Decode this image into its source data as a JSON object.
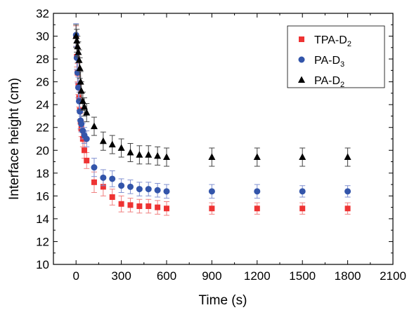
{
  "chart_data": {
    "type": "scatter",
    "xlabel": "Time (s)",
    "ylabel": "Interface height (cm)",
    "xlim": [
      -150,
      2100
    ],
    "ylim": [
      10,
      32
    ],
    "xticks": [
      0,
      300,
      600,
      900,
      1200,
      1500,
      1800,
      2100
    ],
    "yticks": [
      10,
      12,
      14,
      16,
      18,
      20,
      22,
      24,
      26,
      28,
      30,
      32
    ],
    "grid": false,
    "legend_position": "top-right",
    "series": [
      {
        "name_main": "TPA-D",
        "name_sub": "2",
        "marker": "square",
        "color": "#ee3333",
        "points": [
          {
            "x": 0,
            "y": 30.0,
            "err": 0.9
          },
          {
            "x": 5,
            "y": 28.2,
            "err": 0.9
          },
          {
            "x": 10,
            "y": 26.8,
            "err": 0.8
          },
          {
            "x": 15,
            "y": 25.7,
            "err": 0.8
          },
          {
            "x": 20,
            "y": 24.6,
            "err": 0.8
          },
          {
            "x": 25,
            "y": 23.5,
            "err": 0.8
          },
          {
            "x": 30,
            "y": 22.5,
            "err": 0.7
          },
          {
            "x": 35,
            "y": 21.9,
            "err": 0.7
          },
          {
            "x": 45,
            "y": 21.0,
            "err": 0.7
          },
          {
            "x": 55,
            "y": 20.0,
            "err": 0.7
          },
          {
            "x": 70,
            "y": 19.1,
            "err": 0.7
          },
          {
            "x": 120,
            "y": 17.2,
            "err": 0.9
          },
          {
            "x": 180,
            "y": 16.8,
            "err": 0.8
          },
          {
            "x": 240,
            "y": 15.9,
            "err": 0.7
          },
          {
            "x": 300,
            "y": 15.3,
            "err": 0.7
          },
          {
            "x": 360,
            "y": 15.2,
            "err": 0.6
          },
          {
            "x": 420,
            "y": 15.1,
            "err": 0.6
          },
          {
            "x": 480,
            "y": 15.1,
            "err": 0.6
          },
          {
            "x": 540,
            "y": 15.0,
            "err": 0.6
          },
          {
            "x": 600,
            "y": 14.9,
            "err": 0.6
          },
          {
            "x": 900,
            "y": 14.9,
            "err": 0.5
          },
          {
            "x": 1200,
            "y": 14.9,
            "err": 0.5
          },
          {
            "x": 1500,
            "y": 14.9,
            "err": 0.5
          },
          {
            "x": 1800,
            "y": 14.9,
            "err": 0.5
          }
        ]
      },
      {
        "name_main": "PA-D",
        "name_sub": "3",
        "marker": "circle",
        "color": "#3355aa",
        "points": [
          {
            "x": 0,
            "y": 30.1,
            "err": 1.0
          },
          {
            "x": 5,
            "y": 28.1,
            "err": 1.0
          },
          {
            "x": 10,
            "y": 26.8,
            "err": 0.9
          },
          {
            "x": 15,
            "y": 25.5,
            "err": 0.9
          },
          {
            "x": 20,
            "y": 24.3,
            "err": 0.8
          },
          {
            "x": 25,
            "y": 23.4,
            "err": 0.8
          },
          {
            "x": 30,
            "y": 22.6,
            "err": 0.7
          },
          {
            "x": 35,
            "y": 22.3,
            "err": 0.7
          },
          {
            "x": 45,
            "y": 21.7,
            "err": 0.7
          },
          {
            "x": 55,
            "y": 21.3,
            "err": 0.7
          },
          {
            "x": 70,
            "y": 21.0,
            "err": 0.7
          },
          {
            "x": 120,
            "y": 18.5,
            "err": 0.8
          },
          {
            "x": 180,
            "y": 17.6,
            "err": 0.7
          },
          {
            "x": 240,
            "y": 17.5,
            "err": 0.7
          },
          {
            "x": 300,
            "y": 16.9,
            "err": 0.6
          },
          {
            "x": 360,
            "y": 16.8,
            "err": 0.6
          },
          {
            "x": 420,
            "y": 16.6,
            "err": 0.6
          },
          {
            "x": 480,
            "y": 16.6,
            "err": 0.6
          },
          {
            "x": 540,
            "y": 16.5,
            "err": 0.6
          },
          {
            "x": 600,
            "y": 16.4,
            "err": 0.6
          },
          {
            "x": 900,
            "y": 16.4,
            "err": 0.6
          },
          {
            "x": 1200,
            "y": 16.4,
            "err": 0.6
          },
          {
            "x": 1500,
            "y": 16.4,
            "err": 0.5
          },
          {
            "x": 1800,
            "y": 16.4,
            "err": 0.5
          }
        ]
      },
      {
        "name_main": "PA-D",
        "name_sub": "2",
        "marker": "triangle",
        "color": "#000000",
        "points": [
          {
            "x": 0,
            "y": 30.0,
            "err": 1.0
          },
          {
            "x": 5,
            "y": 29.6,
            "err": 1.0
          },
          {
            "x": 10,
            "y": 29.1,
            "err": 0.9
          },
          {
            "x": 15,
            "y": 28.6,
            "err": 0.9
          },
          {
            "x": 20,
            "y": 27.9,
            "err": 0.9
          },
          {
            "x": 25,
            "y": 27.2,
            "err": 0.9
          },
          {
            "x": 30,
            "y": 26.0,
            "err": 0.9
          },
          {
            "x": 35,
            "y": 25.2,
            "err": 0.8
          },
          {
            "x": 45,
            "y": 24.3,
            "err": 0.8
          },
          {
            "x": 55,
            "y": 23.8,
            "err": 0.8
          },
          {
            "x": 70,
            "y": 23.3,
            "err": 0.8
          },
          {
            "x": 120,
            "y": 22.1,
            "err": 0.8
          },
          {
            "x": 180,
            "y": 20.8,
            "err": 0.8
          },
          {
            "x": 240,
            "y": 20.5,
            "err": 0.8
          },
          {
            "x": 300,
            "y": 20.2,
            "err": 0.8
          },
          {
            "x": 360,
            "y": 19.8,
            "err": 0.8
          },
          {
            "x": 420,
            "y": 19.6,
            "err": 0.8
          },
          {
            "x": 480,
            "y": 19.6,
            "err": 0.8
          },
          {
            "x": 540,
            "y": 19.5,
            "err": 0.8
          },
          {
            "x": 600,
            "y": 19.4,
            "err": 0.8
          },
          {
            "x": 900,
            "y": 19.4,
            "err": 0.8
          },
          {
            "x": 1200,
            "y": 19.4,
            "err": 0.8
          },
          {
            "x": 1500,
            "y": 19.4,
            "err": 0.8
          },
          {
            "x": 1800,
            "y": 19.4,
            "err": 0.8
          }
        ]
      }
    ]
  }
}
